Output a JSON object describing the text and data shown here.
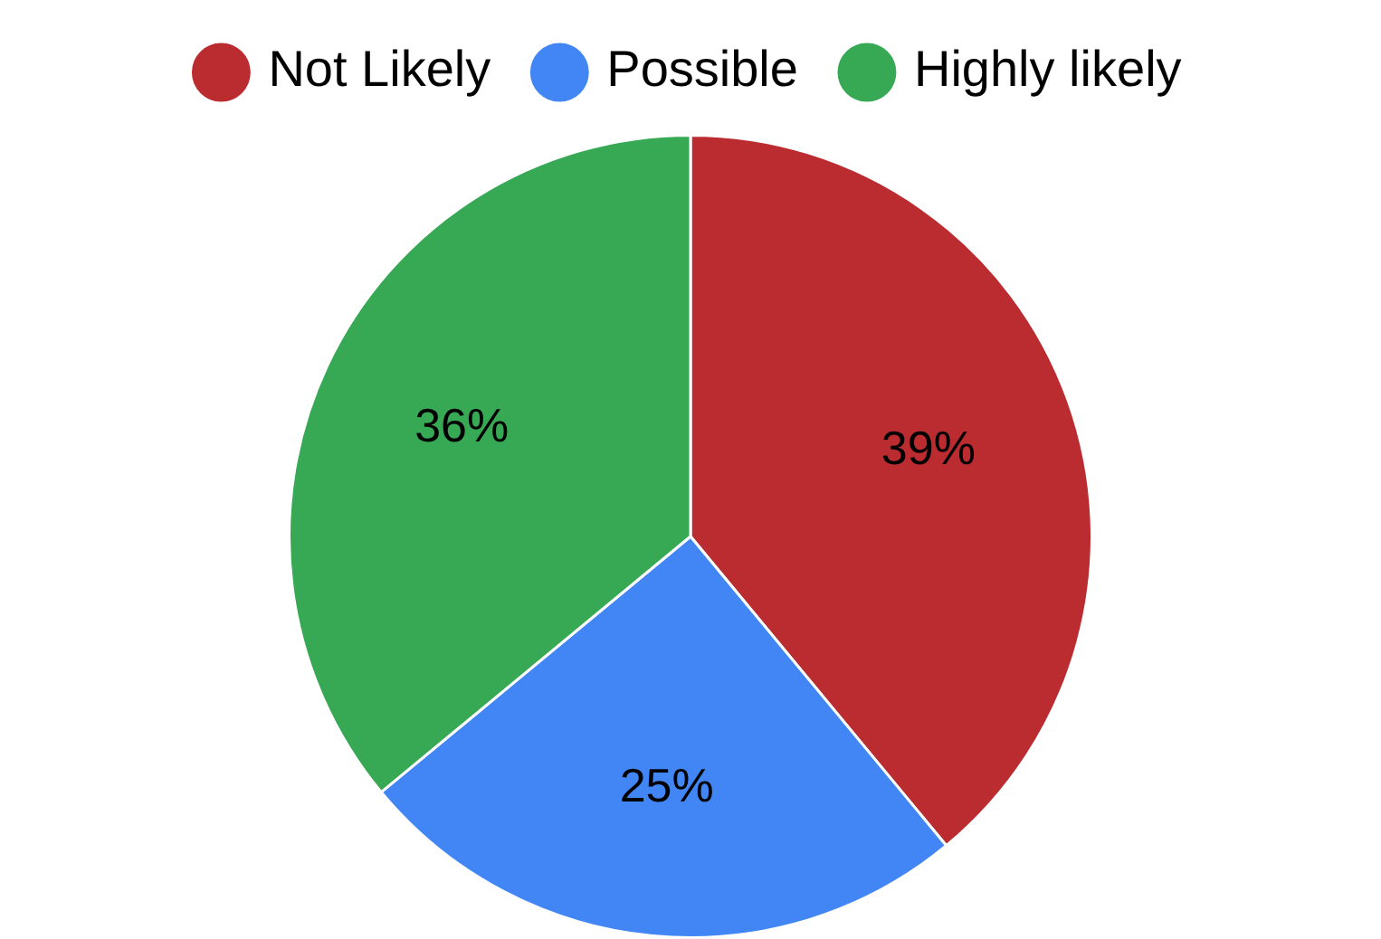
{
  "chart_data": {
    "type": "pie",
    "categories": [
      "Not Likely",
      "Possible",
      "Highly likely"
    ],
    "values": [
      39,
      25,
      36
    ],
    "colors": [
      "#bb2c30",
      "#4286f5",
      "#37a853"
    ],
    "legend": "top",
    "value_labels": [
      "39%",
      "25%",
      "36%"
    ]
  }
}
